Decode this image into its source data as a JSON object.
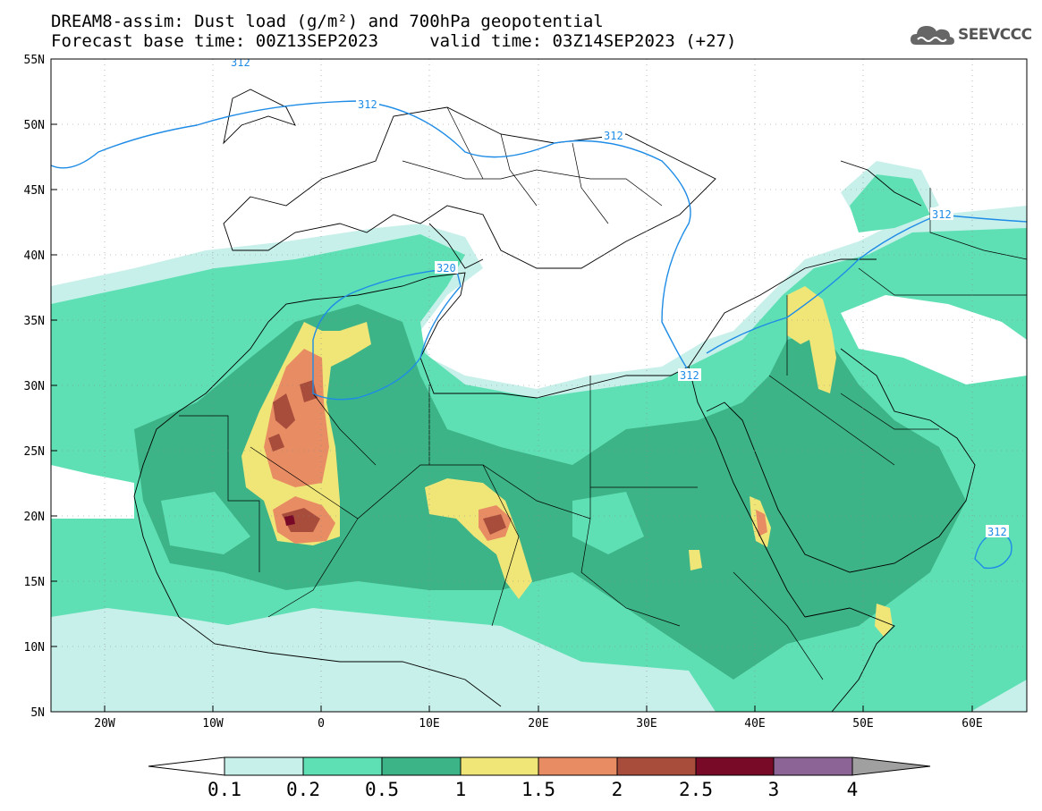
{
  "title_line1": "DREAM8-assim: Dust load (g/m²) and 700hPa geopotential",
  "title_line2": "Forecast base time: 00Z13SEP2023     valid time: 03Z14SEP2023 (+27)",
  "logo": {
    "text": "SEEVCCC",
    "icon": "cloud-icon"
  },
  "map": {
    "lon_ticks": [
      "20W",
      "10W",
      "0",
      "10E",
      "20E",
      "30E",
      "40E",
      "50E",
      "60E"
    ],
    "lat_ticks": [
      "55N",
      "50N",
      "45N",
      "40N",
      "35N",
      "30N",
      "25N",
      "20N",
      "15N",
      "10N",
      "5N"
    ],
    "contour_labels": [
      "312",
      "312",
      "312",
      "320",
      "312",
      "312",
      "312"
    ]
  },
  "colorbar": {
    "labels": [
      "0.1",
      "0.2",
      "0.5",
      "1",
      "1.5",
      "2",
      "2.5",
      "3",
      "4"
    ],
    "colors": [
      "#c8f0ea",
      "#5fe0b4",
      "#3cb487",
      "#f0e678",
      "#e88c64",
      "#a84c3c",
      "#780a28",
      "#8c6496",
      "#a0a0a0"
    ]
  }
}
